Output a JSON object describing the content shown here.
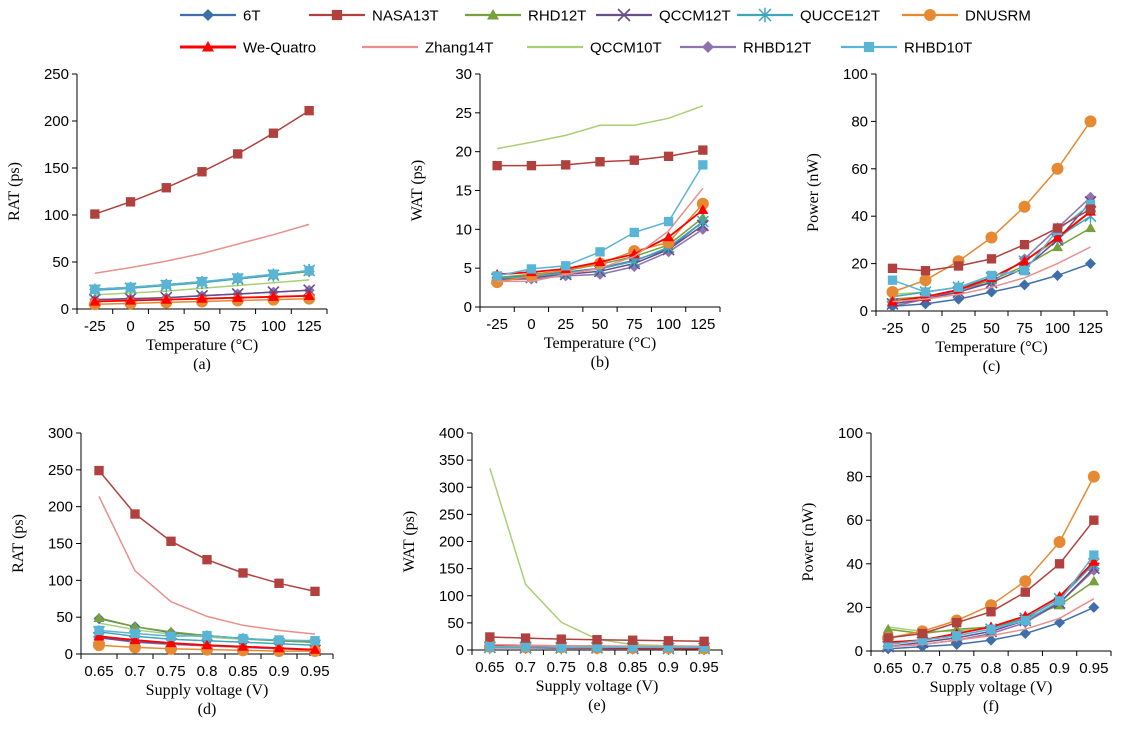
{
  "series_styles": [
    {
      "name": "6T",
      "color": "#3f6faa",
      "marker": "diamond"
    },
    {
      "name": "NASA13T",
      "color": "#b0413e",
      "marker": "square"
    },
    {
      "name": "RHD12T",
      "color": "#78a03c",
      "marker": "triangle"
    },
    {
      "name": "QCCM12T",
      "color": "#6a4c8a",
      "marker": "x"
    },
    {
      "name": "QUCCE12T",
      "color": "#3fa6bd",
      "marker": "star"
    },
    {
      "name": "DNUSRM",
      "color": "#e58a32",
      "marker": "circle"
    },
    {
      "name": "We-Quatro",
      "color": "#ff0000",
      "marker": "triangle"
    },
    {
      "name": "Zhang14T",
      "color": "#e8908c",
      "marker": "none"
    },
    {
      "name": "QCCM10T",
      "color": "#a9cf75",
      "marker": "none"
    },
    {
      "name": "RHBD12T",
      "color": "#8e73b1",
      "marker": "diamond"
    },
    {
      "name": "RHBD10T",
      "color": "#5ab4d6",
      "marker": "square"
    }
  ],
  "chart_data": [
    {
      "type": "line",
      "label": "(a)",
      "xlabel": "Temperature (°C)",
      "ylabel": "RAT (ps)",
      "categories": [
        "-25",
        "0",
        "25",
        "50",
        "75",
        "100",
        "125"
      ],
      "ylim": [
        0,
        250
      ],
      "yticks": [
        0,
        50,
        100,
        150,
        200,
        250
      ],
      "series": [
        {
          "name": "6T",
          "values": [
            21,
            23,
            26,
            29,
            32,
            36,
            40
          ]
        },
        {
          "name": "NASA13T",
          "values": [
            101,
            114,
            129,
            146,
            165,
            187,
            211
          ]
        },
        {
          "name": "RHD12T",
          "values": [
            21,
            23,
            26,
            29,
            32,
            36,
            40
          ]
        },
        {
          "name": "QCCM12T",
          "values": [
            10,
            11,
            12,
            14,
            16,
            18,
            20
          ]
        },
        {
          "name": "QUCCE12T",
          "values": [
            20,
            22,
            25,
            28,
            32,
            36,
            41
          ]
        },
        {
          "name": "DNUSRM",
          "values": [
            5,
            6,
            7,
            8,
            9,
            10,
            11
          ]
        },
        {
          "name": "We-Quatro",
          "values": [
            8,
            9,
            10,
            11,
            12,
            13,
            14
          ]
        },
        {
          "name": "Zhang14T",
          "values": [
            38,
            44,
            51,
            59,
            69,
            79,
            90
          ]
        },
        {
          "name": "QCCM10T",
          "values": [
            15,
            17,
            19,
            22,
            25,
            28,
            31
          ]
        },
        {
          "name": "RHBD12T",
          "values": [
            10,
            11,
            12,
            14,
            16,
            18,
            20
          ]
        },
        {
          "name": "RHBD10T",
          "values": [
            21,
            23,
            26,
            29,
            33,
            37,
            41
          ]
        }
      ]
    },
    {
      "type": "line",
      "label": "(b)",
      "xlabel": "Temperature (°C)",
      "ylabel": "WAT (ps)",
      "categories": [
        "-25",
        "0",
        "25",
        "50",
        "75",
        "100",
        "125"
      ],
      "ylim": [
        0,
        30
      ],
      "yticks": [
        0,
        5,
        10,
        15,
        20,
        25,
        30
      ],
      "series": [
        {
          "name": "6T",
          "values": [
            3.8,
            4.0,
            4.5,
            5.0,
            6.0,
            7.5,
            11.0
          ]
        },
        {
          "name": "NASA13T",
          "values": [
            18.2,
            18.2,
            18.3,
            18.7,
            18.9,
            19.4,
            20.2
          ]
        },
        {
          "name": "RHD12T",
          "values": [
            3.8,
            4.2,
            4.7,
            5.5,
            6.5,
            8.0,
            11.5
          ]
        },
        {
          "name": "QCCM12T",
          "values": [
            3.6,
            3.8,
            4.2,
            4.6,
            5.6,
            7.4,
            10.5
          ]
        },
        {
          "name": "QUCCE12T",
          "values": [
            3.7,
            3.9,
            4.4,
            4.9,
            5.9,
            7.7,
            11.0
          ]
        },
        {
          "name": "DNUSRM",
          "values": [
            3.2,
            4.0,
            4.8,
            5.6,
            7.2,
            8.3,
            13.3
          ]
        },
        {
          "name": "We-Quatro",
          "values": [
            4.2,
            4.5,
            4.9,
            5.8,
            6.8,
            9.0,
            12.5
          ]
        },
        {
          "name": "Zhang14T",
          "values": [
            3.3,
            3.3,
            4.2,
            5.0,
            6.5,
            9.8,
            15.3
          ]
        },
        {
          "name": "QCCM10T",
          "values": [
            20.4,
            21.2,
            22.1,
            23.4,
            23.4,
            24.3,
            25.9
          ]
        },
        {
          "name": "RHBD12T",
          "values": [
            3.5,
            3.6,
            4.0,
            4.2,
            5.2,
            7.1,
            10.0
          ]
        },
        {
          "name": "RHBD10T",
          "values": [
            4.0,
            4.9,
            5.3,
            7.1,
            9.6,
            11.0,
            18.3
          ]
        }
      ]
    },
    {
      "type": "line",
      "label": "(c)",
      "xlabel": "Temperature (°C)",
      "ylabel": "Power (nW)",
      "categories": [
        "-25",
        "0",
        "25",
        "50",
        "75",
        "100",
        "125"
      ],
      "ylim": [
        0,
        100
      ],
      "yticks": [
        0,
        20,
        40,
        60,
        80,
        100
      ],
      "series": [
        {
          "name": "6T",
          "values": [
            2,
            3,
            5,
            8,
            11,
            15,
            20
          ]
        },
        {
          "name": "NASA13T",
          "values": [
            18,
            17,
            19,
            22,
            28,
            35,
            43
          ]
        },
        {
          "name": "RHD12T",
          "values": [
            5,
            6,
            9,
            13,
            19,
            27,
            35
          ]
        },
        {
          "name": "QCCM12T",
          "values": [
            3,
            5,
            8,
            12,
            18,
            30,
            46
          ]
        },
        {
          "name": "QUCCE12T",
          "values": [
            6,
            8,
            10,
            14,
            21,
            31,
            40
          ]
        },
        {
          "name": "DNUSRM",
          "values": [
            8,
            13,
            21,
            31,
            44,
            60,
            80
          ]
        },
        {
          "name": "We-Quatro",
          "values": [
            4,
            6,
            9,
            14,
            21,
            31,
            42
          ]
        },
        {
          "name": "Zhang14T",
          "values": [
            4,
            5,
            7,
            10,
            14,
            20,
            27
          ]
        },
        {
          "name": "QCCM10T",
          "values": [
            7,
            8,
            10,
            14,
            21,
            30,
            42
          ]
        },
        {
          "name": "RHBD12T",
          "values": [
            2,
            5,
            9,
            12,
            22,
            35,
            48
          ]
        },
        {
          "name": "RHBD10T",
          "values": [
            13,
            8,
            10,
            15,
            17,
            34,
            45
          ]
        }
      ]
    },
    {
      "type": "line",
      "label": "(d)",
      "xlabel": "Supply voltage (V)",
      "ylabel": "RAT (ps)",
      "categories": [
        "0.65",
        "0.7",
        "0.75",
        "0.8",
        "0.85",
        "0.9",
        "0.95"
      ],
      "ylim": [
        0,
        300
      ],
      "yticks": [
        0,
        50,
        100,
        150,
        200,
        250,
        300
      ],
      "series": [
        {
          "name": "6T",
          "values": [
            48,
            37,
            29,
            25,
            21,
            18,
            16
          ]
        },
        {
          "name": "NASA13T",
          "values": [
            249,
            190,
            153,
            128,
            110,
            96,
            85
          ]
        },
        {
          "name": "RHD12T",
          "values": [
            49,
            37,
            30,
            25,
            21,
            18,
            16
          ]
        },
        {
          "name": "QCCM12T",
          "values": [
            22,
            17,
            14,
            12,
            10,
            8,
            5
          ]
        },
        {
          "name": "QUCCE12T",
          "values": [
            30,
            24,
            20,
            18,
            16,
            14,
            12
          ]
        },
        {
          "name": "DNUSRM",
          "values": [
            12,
            9,
            7,
            6,
            5,
            4,
            4
          ]
        },
        {
          "name": "We-Quatro",
          "values": [
            24,
            19,
            15,
            12,
            10,
            8,
            6
          ]
        },
        {
          "name": "Zhang14T",
          "values": [
            214,
            113,
            71,
            51,
            39,
            32,
            27
          ]
        },
        {
          "name": "QCCM10T",
          "values": [
            42,
            33,
            27,
            23,
            20,
            18,
            16
          ]
        },
        {
          "name": "RHBD12T",
          "values": [
            22,
            16,
            13,
            11,
            9,
            7,
            5
          ]
        },
        {
          "name": "RHBD10T",
          "values": [
            32,
            28,
            24,
            25,
            21,
            19,
            18
          ]
        }
      ]
    },
    {
      "type": "line",
      "label": "(e)",
      "xlabel": "Supply voltage (V)",
      "ylabel": "WAT (ps)",
      "categories": [
        "0.65",
        "0.7",
        "0.75",
        "0.8",
        "0.85",
        "0.9",
        "0.95"
      ],
      "ylim": [
        0,
        400
      ],
      "yticks": [
        0,
        50,
        100,
        150,
        200,
        250,
        300,
        350,
        400
      ],
      "series": [
        {
          "name": "6T",
          "values": [
            5,
            4,
            4,
            3,
            3,
            3,
            3
          ]
        },
        {
          "name": "NASA13T",
          "values": [
            24,
            22,
            20,
            19,
            18,
            17,
            16
          ]
        },
        {
          "name": "RHD12T",
          "values": [
            6,
            5,
            5,
            5,
            4,
            4,
            4
          ]
        },
        {
          "name": "QCCM12T",
          "values": [
            5,
            4,
            4,
            4,
            3,
            3,
            3
          ]
        },
        {
          "name": "QUCCE12T",
          "values": [
            5,
            5,
            4,
            4,
            4,
            3,
            3
          ]
        },
        {
          "name": "DNUSRM",
          "values": [
            6,
            5,
            5,
            4,
            4,
            4,
            3
          ]
        },
        {
          "name": "We-Quatro",
          "values": [
            7,
            6,
            5,
            5,
            4,
            4,
            4
          ]
        },
        {
          "name": "Zhang14T",
          "values": [
            10,
            9,
            8,
            8,
            7,
            7,
            7
          ]
        },
        {
          "name": "QCCM10T",
          "values": [
            335,
            121,
            51,
            20,
            10,
            8,
            7
          ]
        },
        {
          "name": "RHBD12T",
          "values": [
            4,
            4,
            3,
            3,
            3,
            3,
            2
          ]
        },
        {
          "name": "RHBD10T",
          "values": [
            6,
            6,
            5,
            5,
            5,
            5,
            5
          ]
        }
      ]
    },
    {
      "type": "line",
      "label": "(f)",
      "xlabel": "Supply voltage (V)",
      "ylabel": "Power (nW)",
      "categories": [
        "0.65",
        "0.7",
        "0.75",
        "0.8",
        "0.85",
        "0.9",
        "0.95"
      ],
      "ylim": [
        0,
        100
      ],
      "yticks": [
        0,
        20,
        40,
        60,
        80,
        100
      ],
      "series": [
        {
          "name": "6T",
          "values": [
            1,
            2,
            3,
            5,
            8,
            13,
            20
          ]
        },
        {
          "name": "NASA13T",
          "values": [
            6,
            8,
            13,
            18,
            27,
            40,
            60
          ]
        },
        {
          "name": "RHD12T",
          "values": [
            10,
            8,
            10,
            11,
            15,
            21,
            32
          ]
        },
        {
          "name": "QCCM12T",
          "values": [
            2,
            4,
            6,
            9,
            14,
            22,
            38
          ]
        },
        {
          "name": "QUCCE12T",
          "values": [
            3,
            5,
            7,
            10,
            15,
            24,
            40
          ]
        },
        {
          "name": "DNUSRM",
          "values": [
            6,
            9,
            14,
            21,
            32,
            50,
            80
          ]
        },
        {
          "name": "We-Quatro",
          "values": [
            4,
            5,
            8,
            11,
            16,
            25,
            41
          ]
        },
        {
          "name": "Zhang14T",
          "values": [
            2,
            3,
            5,
            7,
            10,
            15,
            24
          ]
        },
        {
          "name": "QCCM10T",
          "values": [
            11,
            9,
            9,
            11,
            14,
            22,
            38
          ]
        },
        {
          "name": "RHBD12T",
          "values": [
            2,
            3,
            5,
            8,
            13,
            22,
            37
          ]
        },
        {
          "name": "RHBD10T",
          "values": [
            3,
            5,
            7,
            10,
            14,
            23,
            44
          ]
        }
      ]
    }
  ]
}
